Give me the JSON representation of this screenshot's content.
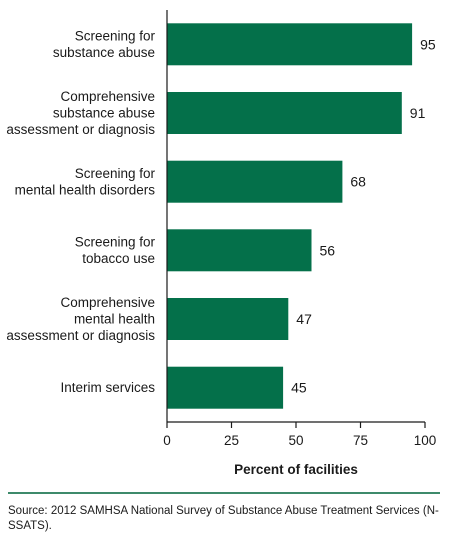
{
  "chart_data": {
    "type": "bar",
    "orientation": "horizontal",
    "categories": [
      [
        "Screening for",
        "substance abuse"
      ],
      [
        "Comprehensive",
        "substance abuse",
        "assessment or diagnosis"
      ],
      [
        "Screening for",
        "mental health disorders"
      ],
      [
        "Screening for",
        "tobacco use"
      ],
      [
        "Comprehensive",
        "mental health",
        "assessment or diagnosis"
      ],
      [
        "Interim services"
      ]
    ],
    "values": [
      95,
      91,
      68,
      56,
      47,
      45
    ],
    "xlabel": "Percent of facilities",
    "xlim": [
      0,
      100
    ],
    "xticks": [
      0,
      25,
      50,
      75,
      100
    ],
    "bar_color": "#04704a",
    "grid": false
  },
  "source_note": "Source: 2012 SAMHSA National Survey of Substance Abuse Treatment Services (N-SSATS)."
}
